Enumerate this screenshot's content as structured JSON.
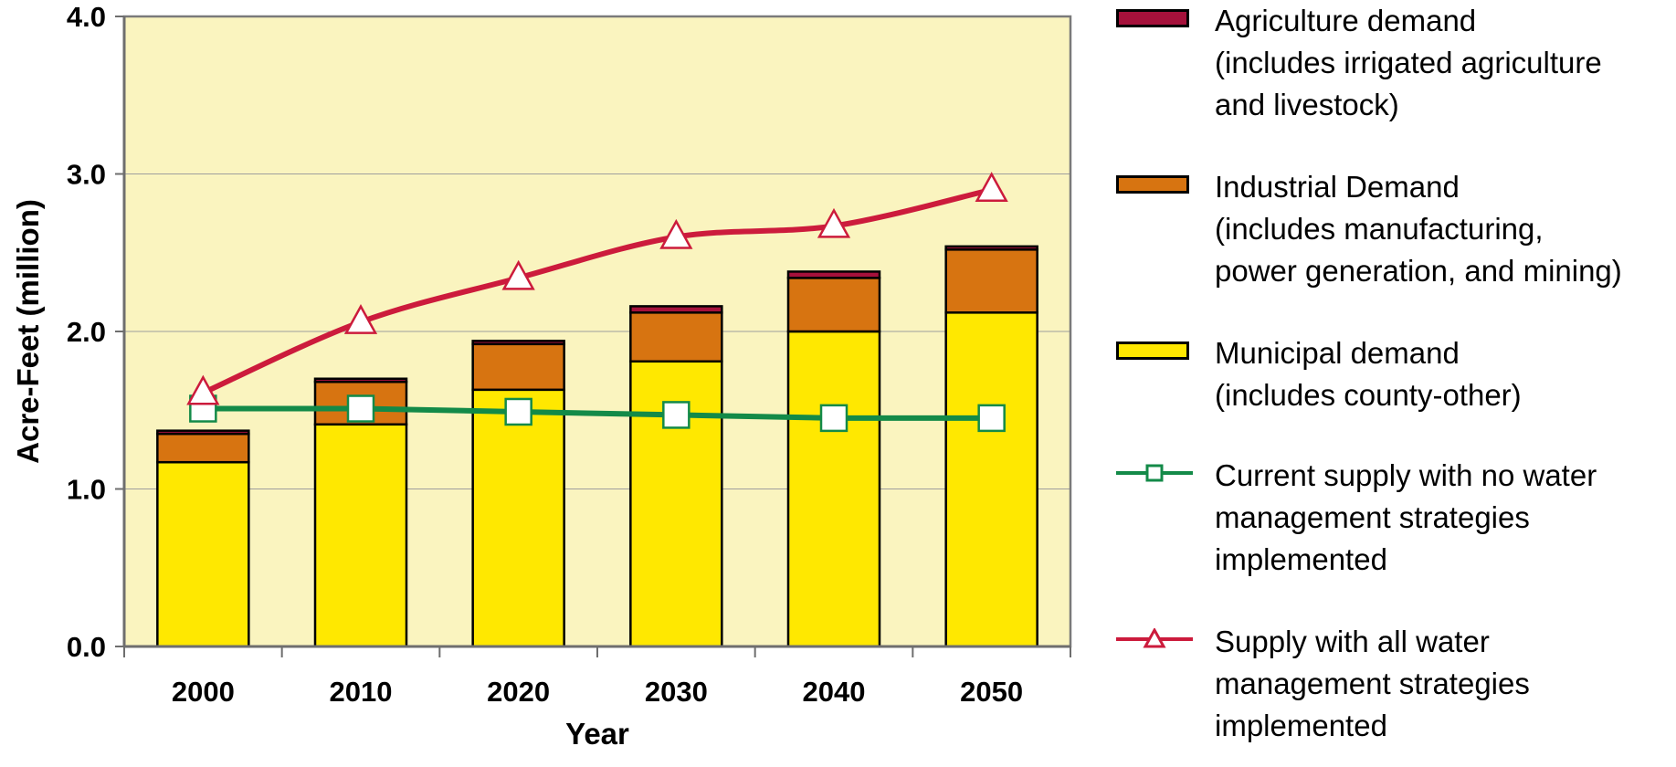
{
  "chart_data": {
    "type": "bar",
    "categories": [
      "2000",
      "2010",
      "2020",
      "2030",
      "2040",
      "2050"
    ],
    "xlabel": "Year",
    "ylabel": "Acre-Feet (million)",
    "ylim": [
      0,
      4
    ],
    "yticks": [
      "0.0",
      "1.0",
      "2.0",
      "3.0",
      "4.0"
    ],
    "grid": true,
    "stacked": true,
    "plot_background": "#FAF4BF",
    "series": [
      {
        "key": "municipal",
        "kind": "bar",
        "color": "#FFE800",
        "values": [
          1.17,
          1.41,
          1.63,
          1.81,
          2.0,
          2.12
        ]
      },
      {
        "key": "industrial",
        "kind": "bar",
        "color": "#D77411",
        "values": [
          0.18,
          0.27,
          0.29,
          0.31,
          0.34,
          0.4
        ]
      },
      {
        "key": "agriculture",
        "kind": "bar",
        "color": "#A5113B",
        "values": [
          0.02,
          0.02,
          0.02,
          0.04,
          0.04,
          0.02
        ]
      },
      {
        "key": "current_supply",
        "kind": "line",
        "marker": "square",
        "color": "#138A48",
        "values": [
          1.51,
          1.51,
          1.49,
          1.47,
          1.45,
          1.45
        ]
      },
      {
        "key": "all_strategies",
        "kind": "line",
        "marker": "triangle",
        "color": "#CC1B3C",
        "values": [
          1.61,
          2.06,
          2.34,
          2.6,
          2.67,
          2.9
        ]
      }
    ]
  },
  "legend": {
    "placement": "right",
    "items": [
      {
        "series": "agriculture",
        "kind": "box",
        "color": "#A5113B",
        "lines": [
          "Agriculture demand",
          "(includes irrigated agriculture",
          "and livestock)"
        ]
      },
      {
        "series": "industrial",
        "kind": "box",
        "color": "#D77411",
        "lines": [
          "Industrial Demand",
          "(includes manufacturing,",
          "power generation, and mining)"
        ]
      },
      {
        "series": "municipal",
        "kind": "box",
        "color": "#FFE800",
        "lines": [
          "Municipal demand",
          "(includes county-other)"
        ]
      },
      {
        "series": "current_supply",
        "kind": "square-line",
        "color": "#138A48",
        "lines": [
          "Current supply with no water",
          "management strategies",
          "implemented"
        ]
      },
      {
        "series": "all_strategies",
        "kind": "triangle-line",
        "color": "#CC1B3C",
        "lines": [
          "Supply with all water",
          "management strategies",
          "implemented"
        ]
      }
    ]
  }
}
